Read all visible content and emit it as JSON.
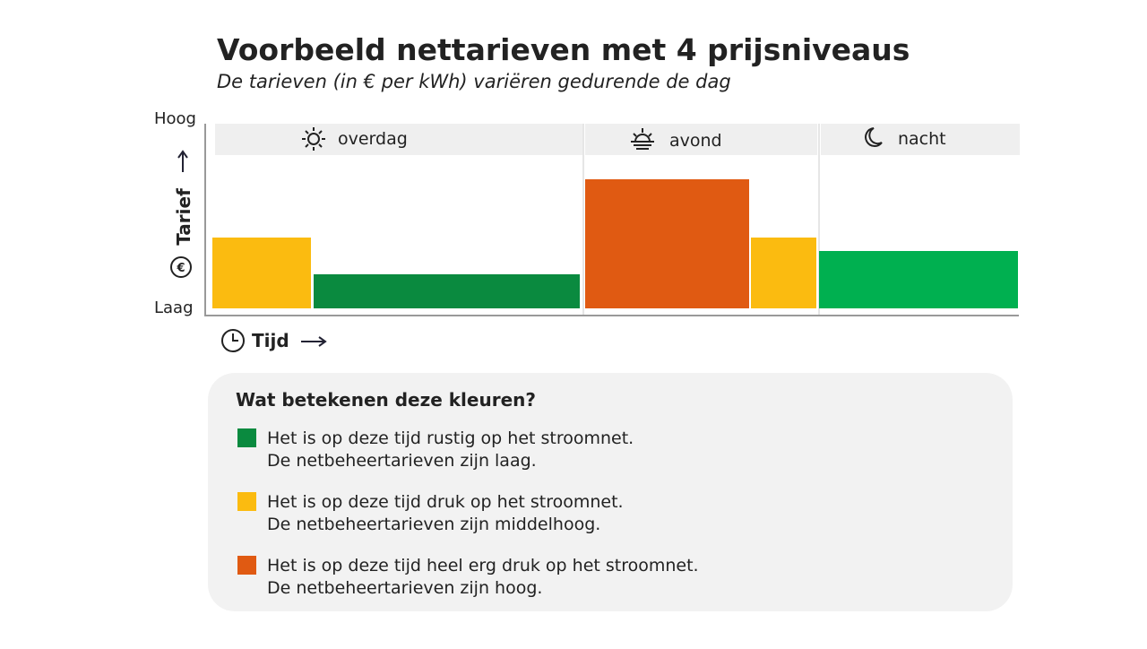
{
  "header": {
    "title": "Voorbeeld nettarieven met 4 prijsniveaus",
    "subtitle": "De tarieven (in € per kWh) variëren gedurende de dag"
  },
  "y_axis": {
    "label": "Tarief",
    "high": "Hoog",
    "low": "Laag"
  },
  "x_axis": {
    "label": "Tijd"
  },
  "periods": [
    "overdag",
    "avond",
    "nacht"
  ],
  "legend": {
    "title": "Wat betekenen deze kleuren?",
    "items": [
      {
        "color": "#0a8a3f",
        "lines": [
          "Het is op deze tijd rustig op het stroomnet.",
          "De netbeheertarieven zijn laag."
        ]
      },
      {
        "color": "#fbbb10",
        "lines": [
          "Het is op deze tijd druk op het stroomnet.",
          "De netbeheertarieven zijn middelhoog."
        ]
      },
      {
        "color": "#e05a12",
        "lines": [
          "Het is op deze tijd heel erg druk op het stroomnet.",
          "De netbeheertarieven zijn hoog."
        ]
      }
    ]
  }
}
